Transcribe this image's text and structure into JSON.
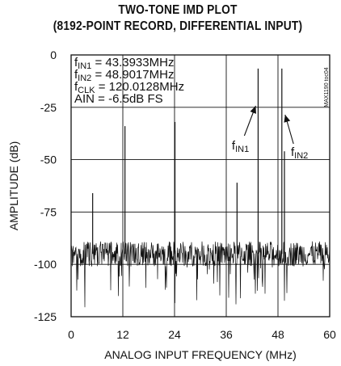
{
  "chart_data": {
    "type": "line",
    "title": "TWO-TONE IMD PLOT",
    "subtitle": "(8192-POINT RECORD, DIFFERENTIAL INPUT)",
    "xlabel": "ANALOG INPUT FREQUENCY (MHz)",
    "ylabel": "AMPLITUDE (dB)",
    "xlim": [
      0,
      60
    ],
    "ylim": [
      -125,
      0
    ],
    "xticks": [
      0,
      12,
      24,
      36,
      48,
      60
    ],
    "yticks": [
      0,
      -25,
      -50,
      -75,
      -100,
      -125
    ],
    "grid": true,
    "noise_floor_db": -95,
    "spurs": [
      {
        "x": 5.0,
        "y": -66
      },
      {
        "x": 12.5,
        "y": -34
      },
      {
        "x": 24.1,
        "y": -32
      },
      {
        "x": 38.5,
        "y": -61
      },
      {
        "x": 43.3933,
        "y": -6.5
      },
      {
        "x": 48.9017,
        "y": -6.5
      },
      {
        "x": 49.5,
        "y": -46
      }
    ],
    "annotations": [
      {
        "main": "f",
        "sub": "IN1",
        "text": " = 43.3933MHz"
      },
      {
        "main": "f",
        "sub": "IN2",
        "text": " = 48.9017MHz"
      },
      {
        "main": "f",
        "sub": "CLK",
        "text": " = 120.0128MHz"
      },
      {
        "main": "",
        "sub": "",
        "text": "AIN = -6.5dB FS"
      }
    ],
    "tone_labels": [
      {
        "main": "f",
        "sub": "IN1"
      },
      {
        "main": "f",
        "sub": "IN2"
      }
    ]
  },
  "side_label": "MAX1190 toc04"
}
